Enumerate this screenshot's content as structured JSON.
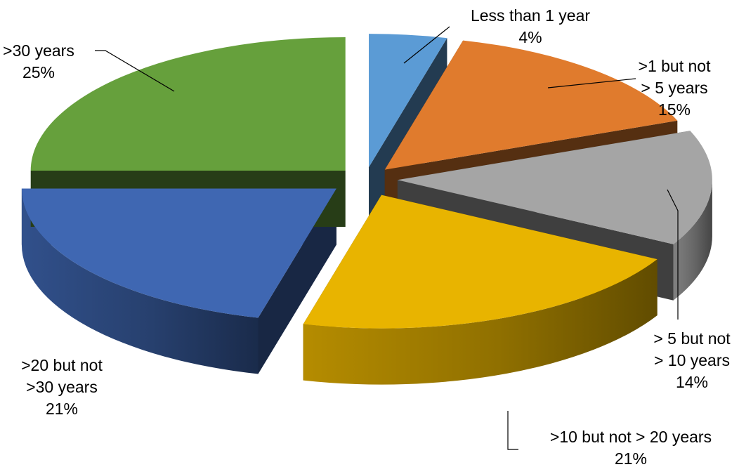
{
  "chart_data": {
    "type": "pie",
    "title": "",
    "start_angle_deg": 0,
    "exploded": true,
    "three_d": true,
    "slices": [
      {
        "label": "Less than 1 year",
        "label_lines": [
          "Less than 1 year"
        ],
        "value": 4,
        "value_label": "4%",
        "color": "#5b9bd5"
      },
      {
        "label": ">1 but not > 5 years",
        "label_lines": [
          ">1 but not",
          "> 5 years"
        ],
        "value": 15,
        "value_label": "15%",
        "color": "#e07b2d"
      },
      {
        "label": "> 5 but not > 10 years",
        "label_lines": [
          "> 5 but not",
          "> 10 years"
        ],
        "value": 14,
        "value_label": "14%",
        "color": "#a5a5a5"
      },
      {
        "label": ">10 but not > 20 years",
        "label_lines": [
          ">10 but not > 20 years"
        ],
        "value": 21,
        "value_label": "21%",
        "color": "#e8b400"
      },
      {
        "label": ">20 but not >30 years",
        "label_lines": [
          ">20 but not",
          ">30 years"
        ],
        "value": 21,
        "value_label": "21%",
        "color": "#3f67b2"
      },
      {
        "label": ">30 years",
        "label_lines": [
          ">30 years"
        ],
        "value": 25,
        "value_label": "25%",
        "color": "#66a03c"
      }
    ]
  }
}
